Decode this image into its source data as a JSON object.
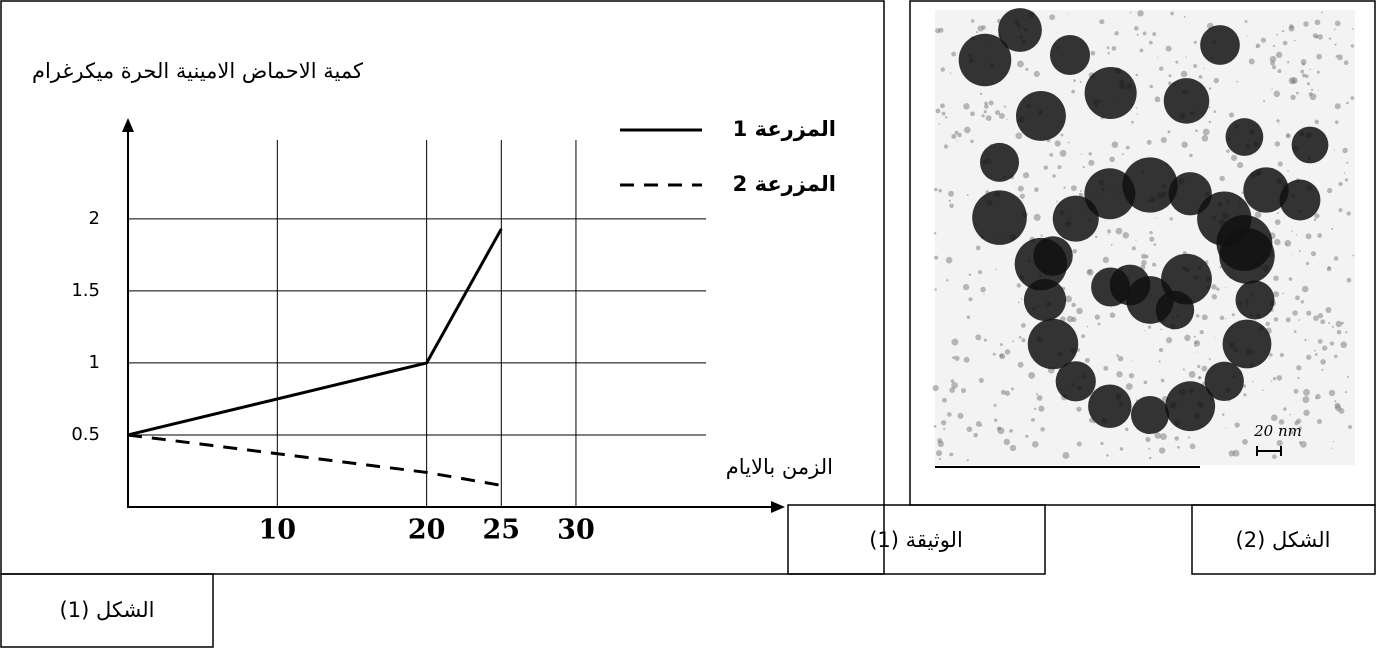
{
  "chart_data": {
    "type": "line",
    "y_label": "كمية الاحماض الامينية الحرة ميكرغرام",
    "x_label": "الزمن بالايام",
    "x": [
      0,
      20,
      25
    ],
    "series": [
      {
        "name": "المزرعة 1",
        "color": "#000000",
        "dash": "solid",
        "values": [
          0.5,
          1,
          1.93
        ]
      },
      {
        "name": "المزرعة 2",
        "color": "#000000",
        "dash": "dashed",
        "values": [
          0.5,
          0.24,
          0.15
        ]
      }
    ],
    "xlim": [
      0,
      44
    ],
    "xticks": [
      10,
      20,
      25,
      30
    ],
    "ylim": [
      0,
      2.7
    ],
    "yticks": [
      0.5,
      1,
      1.5,
      2
    ],
    "grid": true
  },
  "captions": {
    "document": "الوثيقة (1)",
    "figure1": "الشكل (1)",
    "figure2": "الشكل (2)"
  },
  "image": {
    "scale_label": "20 nm"
  }
}
